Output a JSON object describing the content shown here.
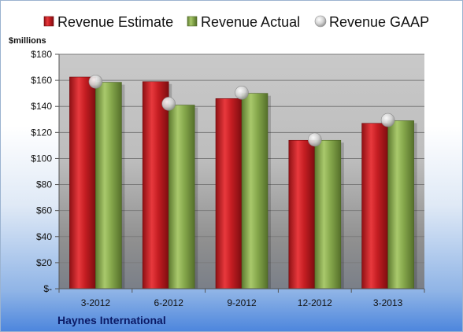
{
  "chart_data": {
    "type": "bar",
    "unit_label": "$millions",
    "company": "Haynes International",
    "categories": [
      "3-2012",
      "6-2012",
      "9-2012",
      "12-2012",
      "3-2013"
    ],
    "series": [
      {
        "name": "Revenue Estimate",
        "kind": "bar",
        "color": "#d9252b",
        "values": [
          162.5,
          159,
          146,
          114,
          127
        ]
      },
      {
        "name": "Revenue Actual",
        "kind": "bar",
        "color": "#8cae52",
        "values": [
          158.5,
          141,
          150,
          114,
          129
        ]
      },
      {
        "name": "Revenue GAAP",
        "kind": "marker",
        "color": "#c8c8c8",
        "values": [
          159,
          142,
          150.5,
          114.5,
          129.5
        ]
      }
    ],
    "ylim": [
      0,
      180
    ],
    "yticks": [
      0,
      20,
      40,
      60,
      80,
      100,
      120,
      140,
      160,
      180
    ],
    "ytick_labels": [
      "$-",
      "$20",
      "$40",
      "$60",
      "$80",
      "$100",
      "$120",
      "$140",
      "$160",
      "$180"
    ],
    "grid": true,
    "legend_position": "top"
  }
}
